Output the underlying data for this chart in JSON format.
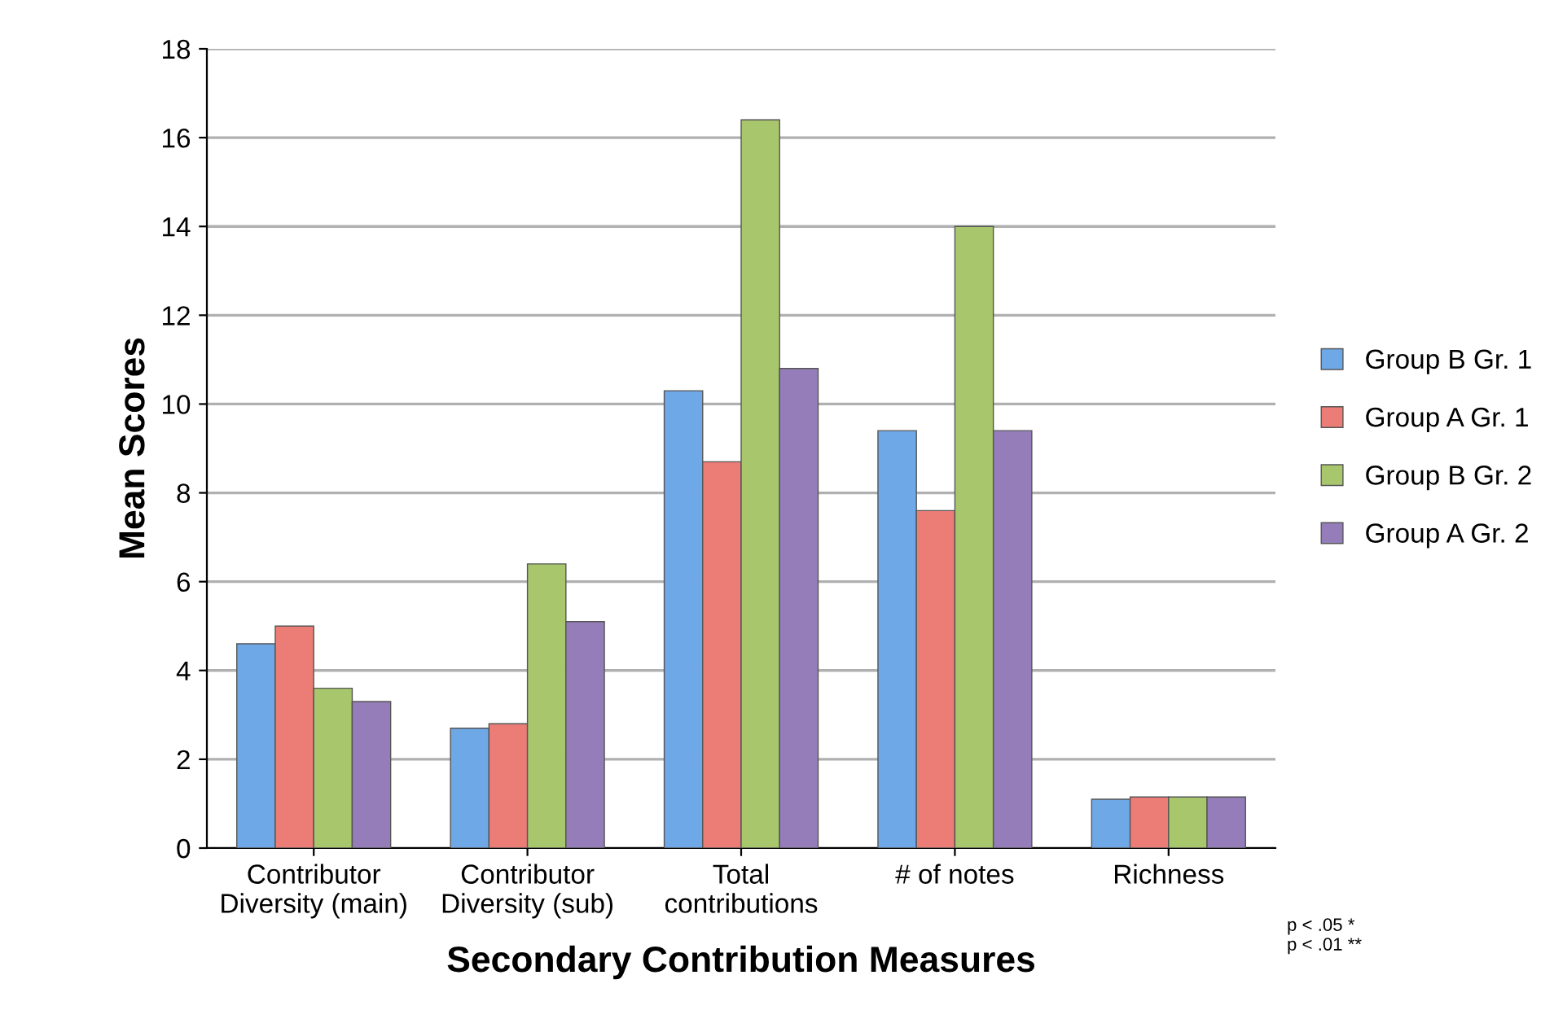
{
  "chart_data": {
    "type": "bar",
    "xlabel": "Secondary Contribution Measures",
    "ylabel": "Mean Scores",
    "categories": [
      "Contributor Diversity (main)",
      "Contributor Diversity (sub)",
      "Total contributions",
      "# of notes",
      "Richness"
    ],
    "series": [
      {
        "name": "Group B Gr. 1",
        "color": "#6fa8e6",
        "values": [
          4.6,
          2.7,
          10.3,
          9.4,
          1.1
        ]
      },
      {
        "name": "Group A Gr. 1",
        "color": "#ec7c76",
        "values": [
          5.0,
          2.8,
          8.7,
          7.6,
          1.15
        ]
      },
      {
        "name": "Group B Gr. 2",
        "color": "#a8c66c",
        "values": [
          3.6,
          6.4,
          16.4,
          14.0,
          1.15
        ]
      },
      {
        "name": "Group A Gr. 2",
        "color": "#957dba",
        "values": [
          3.3,
          5.1,
          10.8,
          9.4,
          1.15
        ]
      }
    ],
    "ylim": [
      0,
      18
    ],
    "yticks": [
      0,
      2,
      4,
      6,
      8,
      10,
      12,
      14,
      16,
      18
    ],
    "grid": "y",
    "legend": "right",
    "annotations": [
      "p < .05 *\np < .01 **"
    ]
  }
}
